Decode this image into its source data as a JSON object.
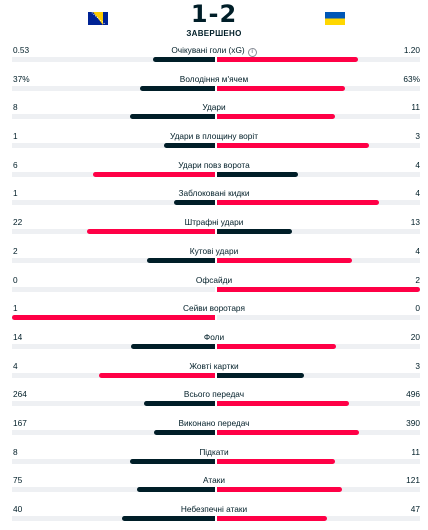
{
  "match": {
    "home_score": "1",
    "separator": "-",
    "away_score": "2",
    "status": "ЗАВЕРШЕНО"
  },
  "colors": {
    "win": "#ff0046",
    "lose": "#001e28",
    "track": "#eef0f3"
  },
  "icons": {
    "info": "info-icon"
  },
  "stats": [
    {
      "label": "Очікувані голи (xG)",
      "home": "0.53",
      "away": "1.20",
      "info": true
    },
    {
      "label": "Володіння м'ячем",
      "home": "37%",
      "away": "63%"
    },
    {
      "label": "Удари",
      "home": "8",
      "away": "11"
    },
    {
      "label": "Удари в площину воріт",
      "home": "1",
      "away": "3"
    },
    {
      "label": "Удари повз ворота",
      "home": "6",
      "away": "4"
    },
    {
      "label": "Заблоковані кидки",
      "home": "1",
      "away": "4"
    },
    {
      "label": "Штрафні удари",
      "home": "22",
      "away": "13"
    },
    {
      "label": "Кутові удари",
      "home": "2",
      "away": "4"
    },
    {
      "label": "Офсайди",
      "home": "0",
      "away": "2"
    },
    {
      "label": "Сейви воротаря",
      "home": "1",
      "away": "0"
    },
    {
      "label": "Фоли",
      "home": "14",
      "away": "20"
    },
    {
      "label": "Жовті картки",
      "home": "4",
      "away": "3"
    },
    {
      "label": "Всього передач",
      "home": "264",
      "away": "496"
    },
    {
      "label": "Виконано передач",
      "home": "167",
      "away": "390"
    },
    {
      "label": "Підкати",
      "home": "8",
      "away": "11"
    },
    {
      "label": "Атаки",
      "home": "75",
      "away": "121"
    },
    {
      "label": "Небезпечні атаки",
      "home": "40",
      "away": "47"
    }
  ]
}
